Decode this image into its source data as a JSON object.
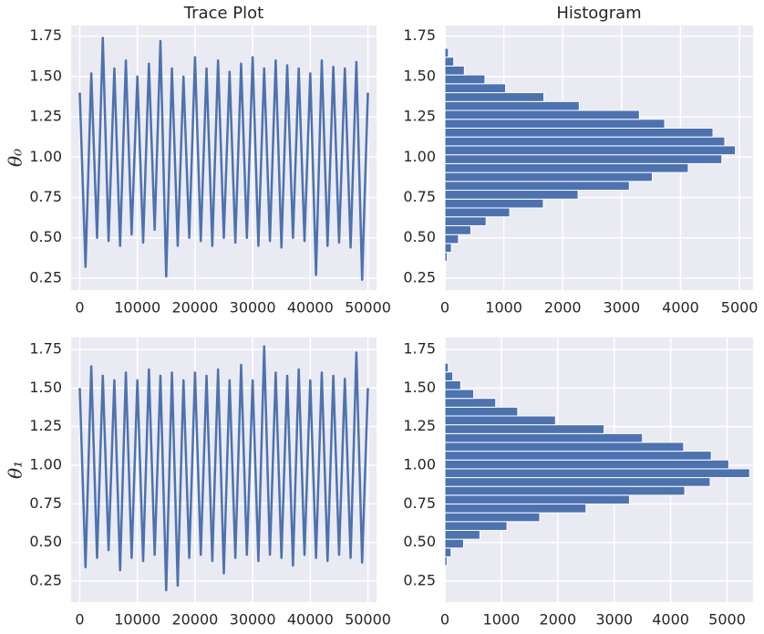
{
  "chart_data": [
    {
      "type": "line",
      "title": "Trace Plot",
      "ylabel": "θ₀",
      "color": "#4c72b0",
      "grid": true,
      "x": [
        0,
        1000,
        2000,
        3000,
        4000,
        5000,
        6000,
        7000,
        8000,
        9000,
        10000,
        11000,
        12000,
        13000,
        14000,
        15000,
        16000,
        17000,
        18000,
        19000,
        20000,
        21000,
        22000,
        23000,
        24000,
        25000,
        26000,
        27000,
        28000,
        29000,
        30000,
        31000,
        32000,
        33000,
        34000,
        35000,
        36000,
        37000,
        38000,
        39000,
        40000,
        41000,
        42000,
        43000,
        44000,
        45000,
        46000,
        47000,
        48000,
        49000,
        50000
      ],
      "values": [
        1.4,
        0.32,
        1.52,
        0.5,
        1.74,
        0.48,
        1.55,
        0.45,
        1.6,
        0.52,
        1.5,
        0.47,
        1.58,
        0.55,
        1.72,
        0.26,
        1.55,
        0.45,
        1.5,
        0.5,
        1.62,
        0.48,
        1.55,
        0.45,
        1.6,
        0.5,
        1.53,
        0.47,
        1.58,
        0.5,
        1.62,
        0.45,
        1.55,
        0.48,
        1.6,
        0.44,
        1.57,
        0.5,
        1.55,
        0.48,
        1.52,
        0.27,
        1.6,
        0.45,
        1.56,
        0.47,
        1.55,
        0.44,
        1.59,
        0.24,
        1.4
      ],
      "xlim": [
        -1500,
        51500
      ],
      "xticks": [
        0,
        10000,
        20000,
        30000,
        40000,
        50000
      ],
      "ylim": [
        0.176,
        1.816
      ],
      "yticks": [
        0.25,
        {
          "value": 0.5,
          "label": "0.50"
        },
        0.75,
        {
          "value": 1.0,
          "label": "1.00"
        },
        1.25,
        {
          "value": 1.5,
          "label": "1.50"
        },
        1.75
      ]
    },
    {
      "type": "histogram",
      "title": "Histogram",
      "orientation": "horizontal",
      "color": "#4c72b0",
      "grid": true,
      "bins": [
        0.245,
        0.3,
        0.355,
        0.41,
        0.465,
        0.52,
        0.575,
        0.63,
        0.685,
        0.74,
        0.795,
        0.85,
        0.905,
        0.96,
        1.015,
        1.07,
        1.125,
        1.18,
        1.235,
        1.29,
        1.345,
        1.4,
        1.455,
        1.51,
        1.565,
        1.62,
        1.675,
        1.73
      ],
      "counts": [
        5,
        15,
        40,
        110,
        230,
        440,
        700,
        1100,
        1670,
        2260,
        3130,
        3520,
        4130,
        4700,
        4930,
        4750,
        4550,
        3730,
        3300,
        2280,
        1680,
        1030,
        680,
        330,
        150,
        60,
        10
      ],
      "xlim": [
        0,
        5230
      ],
      "xticks": [
        0,
        1000,
        2000,
        3000,
        4000,
        5000
      ],
      "ylim": [
        0.176,
        1.816
      ],
      "yticks": [
        0.25,
        {
          "value": 0.5,
          "label": "0.50"
        },
        0.75,
        {
          "value": 1.0,
          "label": "1.00"
        },
        1.25,
        {
          "value": 1.5,
          "label": "1.50"
        },
        1.75
      ]
    },
    {
      "type": "line",
      "ylabel": "θ₁",
      "color": "#4c72b0",
      "grid": true,
      "x": [
        0,
        1000,
        2000,
        3000,
        4000,
        5000,
        6000,
        7000,
        8000,
        9000,
        10000,
        11000,
        12000,
        13000,
        14000,
        15000,
        16000,
        17000,
        18000,
        19000,
        20000,
        21000,
        22000,
        23000,
        24000,
        25000,
        26000,
        27000,
        28000,
        29000,
        30000,
        31000,
        32000,
        33000,
        34000,
        35000,
        36000,
        37000,
        38000,
        39000,
        40000,
        41000,
        42000,
        43000,
        44000,
        45000,
        46000,
        47000,
        48000,
        49000,
        50000
      ],
      "values": [
        1.5,
        0.34,
        1.64,
        0.4,
        1.58,
        0.45,
        1.55,
        0.32,
        1.6,
        0.4,
        1.55,
        0.38,
        1.62,
        0.42,
        1.58,
        0.19,
        1.6,
        0.22,
        1.55,
        0.4,
        1.6,
        0.42,
        1.58,
        0.38,
        1.62,
        0.3,
        1.55,
        0.4,
        1.65,
        0.42,
        1.55,
        0.38,
        1.77,
        0.42,
        1.6,
        0.4,
        1.58,
        0.35,
        1.62,
        0.42,
        1.55,
        0.4,
        1.6,
        0.38,
        1.58,
        0.42,
        1.56,
        0.4,
        1.73,
        0.37,
        1.5
      ],
      "xlim": [
        -1500,
        51500
      ],
      "xticks": [
        0,
        10000,
        20000,
        30000,
        40000,
        50000
      ],
      "ylim": [
        0.114,
        1.827
      ],
      "yticks": [
        0.25,
        {
          "value": 0.5,
          "label": "0.50"
        },
        0.75,
        {
          "value": 1.0,
          "label": "1.00"
        },
        1.25,
        {
          "value": 1.5,
          "label": "1.50"
        },
        1.75
      ]
    },
    {
      "type": "histogram",
      "orientation": "horizontal",
      "color": "#4c72b0",
      "grid": true,
      "bins": [
        0.35,
        0.407,
        0.464,
        0.521,
        0.578,
        0.635,
        0.692,
        0.749,
        0.806,
        0.863,
        0.92,
        0.977,
        1.034,
        1.091,
        1.148,
        1.205,
        1.262,
        1.319,
        1.376,
        1.433,
        1.49,
        1.547,
        1.604,
        1.661,
        1.718
      ],
      "counts": [
        40,
        110,
        330,
        620,
        1100,
        1680,
        2500,
        3270,
        4250,
        4700,
        5400,
        5030,
        4720,
        4230,
        3500,
        2820,
        1960,
        1290,
        900,
        510,
        280,
        140,
        60,
        10
      ],
      "xlim": [
        0,
        5460
      ],
      "xticks": [
        0,
        1000,
        2000,
        3000,
        4000,
        5000
      ],
      "ylim": [
        0.114,
        1.827
      ],
      "yticks": [
        0.25,
        {
          "value": 0.5,
          "label": "0.50"
        },
        0.75,
        {
          "value": 1.0,
          "label": "1.00"
        },
        1.25,
        {
          "value": 1.5,
          "label": "1.50"
        },
        1.75
      ]
    }
  ]
}
